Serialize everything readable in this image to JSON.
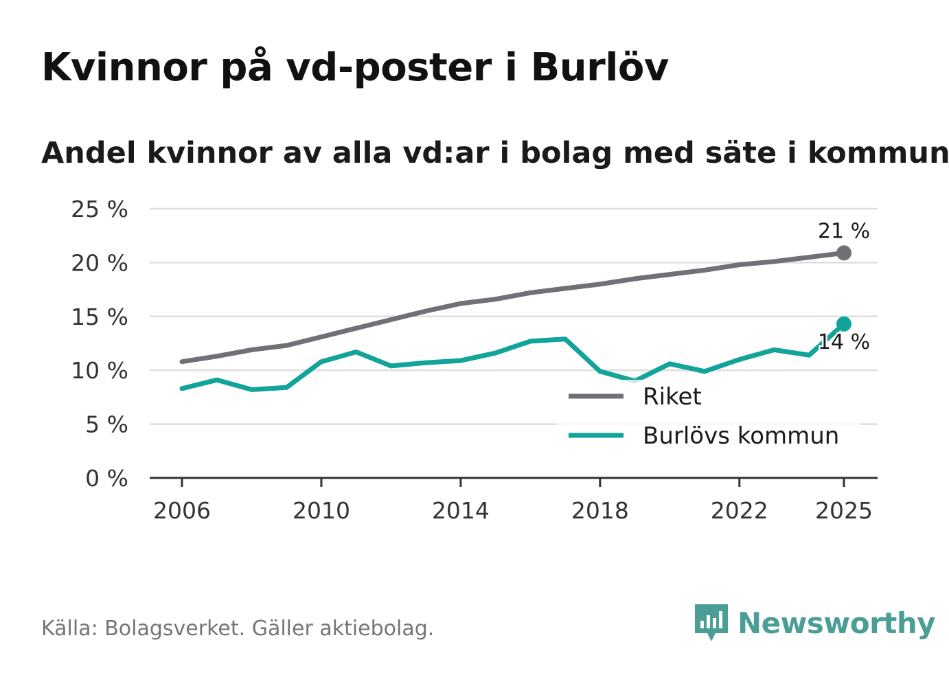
{
  "header": {
    "title": "Kvinnor på vd-poster i Burlöv",
    "subtitle": "Andel kvinnor av alla vd:ar i bolag med säte i kommunen"
  },
  "footer": {
    "source": "Källa: Bolagsverket. Gäller aktiebolag.",
    "brand": "Newsworthy"
  },
  "colors": {
    "riket": "#717076",
    "burlov": "#12a39a",
    "grid": "#dedede",
    "axis": "#333333",
    "brand": "#4a9e96"
  },
  "chart_data": {
    "type": "line",
    "x": [
      2006,
      2007,
      2008,
      2009,
      2010,
      2011,
      2012,
      2013,
      2014,
      2015,
      2016,
      2017,
      2018,
      2019,
      2020,
      2021,
      2022,
      2023,
      2024,
      2025
    ],
    "series": [
      {
        "name": "Riket",
        "values": [
          10.8,
          11.3,
          11.9,
          12.3,
          13.1,
          13.9,
          14.7,
          15.5,
          16.2,
          16.6,
          17.2,
          17.6,
          18.0,
          18.5,
          18.9,
          19.3,
          19.8,
          20.1,
          20.5,
          20.9
        ],
        "end_label": "21 %"
      },
      {
        "name": "Burlövs kommun",
        "values": [
          8.3,
          9.1,
          8.2,
          8.4,
          10.8,
          11.7,
          10.4,
          10.7,
          10.9,
          11.6,
          12.7,
          12.9,
          9.9,
          9.0,
          10.6,
          9.9,
          11.0,
          11.9,
          11.4,
          14.3
        ],
        "end_label": "14 %"
      }
    ],
    "title": "Kvinnor på vd-poster i Burlöv",
    "xlabel": "",
    "ylabel": "",
    "ylim": [
      0,
      25
    ],
    "yticks": [
      0,
      5,
      10,
      15,
      20,
      25
    ],
    "ytick_labels": [
      "0 %",
      "5 %",
      "10 %",
      "15 %",
      "20 %",
      "25 %"
    ],
    "xticks": [
      2006,
      2010,
      2014,
      2018,
      2022,
      2025
    ],
    "xtick_labels": [
      "2006",
      "2010",
      "2014",
      "2018",
      "2022",
      "2025"
    ],
    "grid": true,
    "legend": {
      "position": "bottom-right",
      "entries": [
        "Riket",
        "Burlövs kommun"
      ]
    }
  }
}
